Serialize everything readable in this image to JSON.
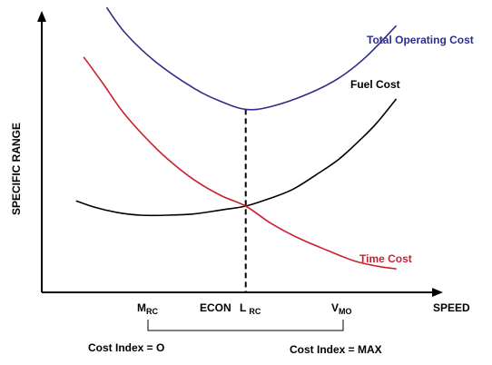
{
  "chart_data": {
    "type": "line",
    "title": "",
    "xlabel": "SPEED",
    "ylabel": "SPECIFIC RANGE",
    "xlim": [
      0,
      100
    ],
    "ylim": [
      0,
      100
    ],
    "x_ticks": [
      {
        "key": "mrc",
        "x": 33,
        "main": "M",
        "sub": "RC"
      },
      {
        "key": "econ",
        "x": 53.5,
        "main": "ECON",
        "sub": ""
      },
      {
        "key": "lrc",
        "x": 62.5,
        "main": "L",
        "sub": "RC"
      },
      {
        "key": "vmo",
        "x": 93,
        "main": "V",
        "sub": "MO"
      }
    ],
    "cost_index_left": "Cost Index = O",
    "cost_index_right": "Cost Index = MAX",
    "econ_point": {
      "x": 53.5,
      "y": 70
    },
    "series": [
      {
        "name": "Total Operating Cost",
        "color": "#2e2e8a",
        "points": [
          [
            17,
            109
          ],
          [
            22,
            99
          ],
          [
            30,
            88
          ],
          [
            40,
            78
          ],
          [
            47,
            73
          ],
          [
            53.5,
            70
          ],
          [
            60,
            71
          ],
          [
            70,
            76
          ],
          [
            78,
            82
          ],
          [
            85,
            90
          ],
          [
            93,
            102
          ]
        ]
      },
      {
        "name": "Fuel Cost",
        "color": "#000000",
        "points": [
          [
            9,
            35
          ],
          [
            14,
            32.5
          ],
          [
            20,
            30.5
          ],
          [
            26,
            29.5
          ],
          [
            33,
            29.5
          ],
          [
            40,
            30
          ],
          [
            47,
            31.5
          ],
          [
            53.5,
            33
          ],
          [
            60,
            36
          ],
          [
            66,
            39.5
          ],
          [
            72,
            45
          ],
          [
            78,
            51
          ],
          [
            84,
            59
          ],
          [
            88,
            65
          ],
          [
            93,
            74
          ]
        ]
      },
      {
        "name": "Time Cost",
        "color": "#cc1f2e",
        "points": [
          [
            11,
            90
          ],
          [
            16,
            80
          ],
          [
            21,
            69.5
          ],
          [
            27,
            59.5
          ],
          [
            33,
            51
          ],
          [
            40,
            43
          ],
          [
            47,
            37
          ],
          [
            53.5,
            33
          ],
          [
            60,
            26.5
          ],
          [
            67,
            21
          ],
          [
            75,
            16
          ],
          [
            82,
            12
          ],
          [
            88,
            10
          ],
          [
            93,
            9
          ]
        ]
      }
    ]
  }
}
